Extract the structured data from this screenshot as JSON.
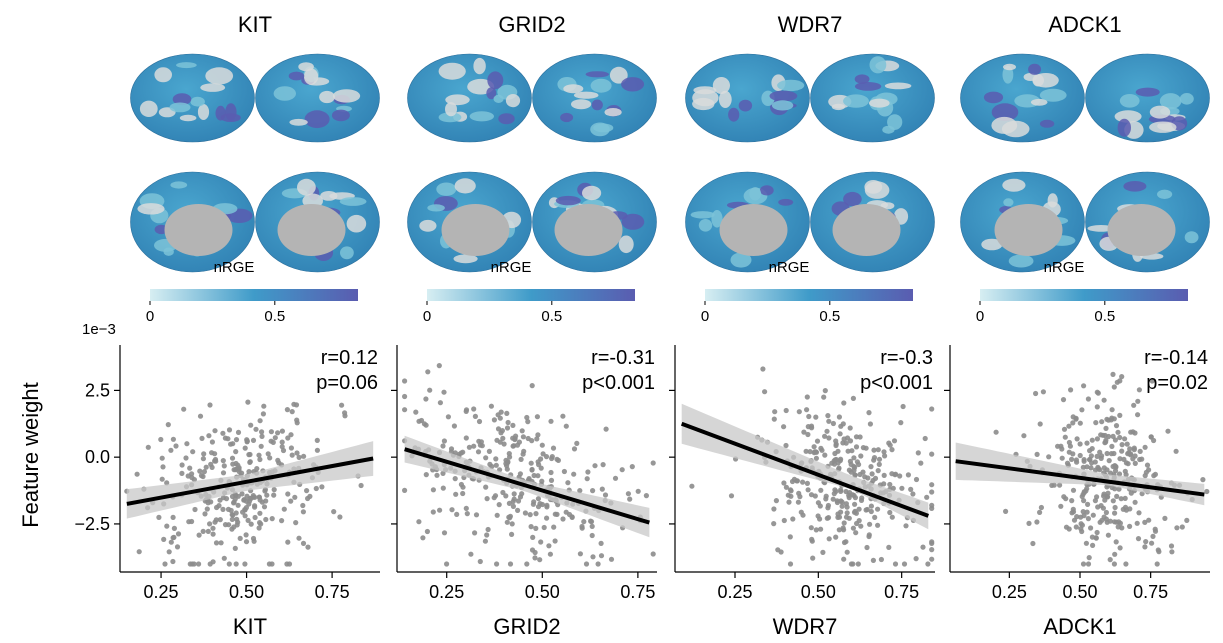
{
  "figure": {
    "y_axis_label": "Feature weight",
    "y_scale_label": "1e−3",
    "colorbar_label": "nRGE",
    "colorbar_ticks": [
      "0",
      "0.5"
    ],
    "colors": {
      "brain_low": "#d7eef2",
      "brain_mid": "#3f9bc9",
      "brain_high": "#5a5cb0",
      "brain_medial_wall": "#b4b4b4",
      "points": "#8c8c8c",
      "regression_line": "#000000",
      "confidence_band": "#c8c8c8",
      "axis": "#000000"
    },
    "genes": [
      {
        "name": "KIT",
        "stat_r": "r=0.12",
        "stat_p": "p=0.06"
      },
      {
        "name": "GRID2",
        "stat_r": "r=-0.31",
        "stat_p": "p<0.001"
      },
      {
        "name": "WDR7",
        "stat_r": "r=-0.3",
        "stat_p": "p<0.001"
      },
      {
        "name": "ADCK1",
        "stat_r": "r=-0.14",
        "stat_p": "p=0.02"
      }
    ]
  },
  "chart_data": [
    {
      "type": "scatter",
      "title": "KIT",
      "xlabel": "KIT",
      "ylabel": "Feature weight",
      "y_scale": "1e-3",
      "xlim": [
        0.13,
        0.89
      ],
      "ylim": [
        -4.3,
        4.2
      ],
      "x_ticks": [
        0.25,
        0.5,
        0.75
      ],
      "y_ticks": [
        -2.5,
        0.0,
        2.5
      ],
      "x_tick_labels": [
        "0.25",
        "0.50",
        "0.75"
      ],
      "y_tick_labels": [
        "−2.5",
        "0.0",
        "2.5"
      ],
      "regression": {
        "x": [
          0.15,
          0.87
        ],
        "y": [
          -1.75,
          -0.05
        ]
      },
      "confidence_band": {
        "x": [
          0.15,
          0.5,
          0.87
        ],
        "upper": [
          -1.2,
          -0.65,
          0.6
        ],
        "lower": [
          -2.3,
          -1.25,
          -0.7
        ]
      },
      "annotations": {
        "r": "r=0.12",
        "p": "p=0.06"
      },
      "point_cloud": {
        "n": 320,
        "x_mean": 0.48,
        "x_sd": 0.12,
        "y_intercept": -1.05,
        "y_slope": 2.4,
        "y_sd": 1.5
      },
      "grid": false
    },
    {
      "type": "scatter",
      "title": "GRID2",
      "xlabel": "GRID2",
      "ylabel": "",
      "y_scale": "1e-3",
      "xlim": [
        0.12,
        0.8
      ],
      "ylim": [
        -4.3,
        4.2
      ],
      "x_ticks": [
        0.25,
        0.5,
        0.75
      ],
      "y_ticks": [
        -2.5,
        0.0,
        2.5
      ],
      "x_tick_labels": [
        "0.25",
        "0.50",
        "0.75"
      ],
      "y_tick_labels": [],
      "regression": {
        "x": [
          0.14,
          0.78
        ],
        "y": [
          0.3,
          -2.45
        ]
      },
      "confidence_band": {
        "x": [
          0.14,
          0.45,
          0.78
        ],
        "upper": [
          0.8,
          -0.85,
          -1.9
        ],
        "lower": [
          -0.2,
          -1.25,
          -3.0
        ]
      },
      "annotations": {
        "r": "r=-0.31",
        "p": "p<0.001"
      },
      "point_cloud": {
        "n": 320,
        "x_mean": 0.42,
        "x_sd": 0.14,
        "y_intercept": -0.9,
        "y_slope": -4.3,
        "y_sd": 1.4
      },
      "grid": false
    },
    {
      "type": "scatter",
      "title": "WDR7",
      "xlabel": "WDR7",
      "ylabel": "",
      "y_scale": "1e-3",
      "xlim": [
        0.07,
        0.85
      ],
      "ylim": [
        -4.3,
        4.2
      ],
      "x_ticks": [
        0.25,
        0.5,
        0.75
      ],
      "y_ticks": [
        -2.5,
        0.0,
        2.5
      ],
      "x_tick_labels": [
        "0.25",
        "0.50",
        "0.75"
      ],
      "y_tick_labels": [],
      "regression": {
        "x": [
          0.09,
          0.83
        ],
        "y": [
          1.25,
          -2.2
        ]
      },
      "confidence_band": {
        "x": [
          0.09,
          0.6,
          0.83
        ],
        "upper": [
          2.0,
          -0.7,
          -1.7
        ],
        "lower": [
          0.5,
          -1.2,
          -2.7
        ]
      },
      "annotations": {
        "r": "r=-0.3",
        "p": "p<0.001"
      },
      "point_cloud": {
        "n": 320,
        "x_mean": 0.58,
        "x_sd": 0.12,
        "y_intercept": -1.1,
        "y_slope": -4.7,
        "y_sd": 1.4
      },
      "grid": false
    },
    {
      "type": "scatter",
      "title": "ADCK1",
      "xlabel": "ADCK1",
      "ylabel": "",
      "y_scale": "1e-3",
      "xlim": [
        0.04,
        0.96
      ],
      "ylim": [
        -4.3,
        4.2
      ],
      "x_ticks": [
        0.25,
        0.5,
        0.75
      ],
      "y_ticks": [
        -2.5,
        0.0,
        2.5
      ],
      "x_tick_labels": [
        "0.25",
        "0.50",
        "0.75"
      ],
      "y_tick_labels": [],
      "regression": {
        "x": [
          0.06,
          0.94
        ],
        "y": [
          -0.15,
          -1.4
        ]
      },
      "confidence_band": {
        "x": [
          0.06,
          0.6,
          0.94
        ],
        "upper": [
          0.55,
          -0.65,
          -1.0
        ],
        "lower": [
          -0.85,
          -1.05,
          -1.8
        ]
      },
      "annotations": {
        "r": "r=-0.14",
        "p": "p=0.02"
      },
      "point_cloud": {
        "n": 320,
        "x_mean": 0.6,
        "x_sd": 0.13,
        "y_intercept": -0.9,
        "y_slope": -1.4,
        "y_sd": 1.5
      },
      "grid": false
    }
  ]
}
